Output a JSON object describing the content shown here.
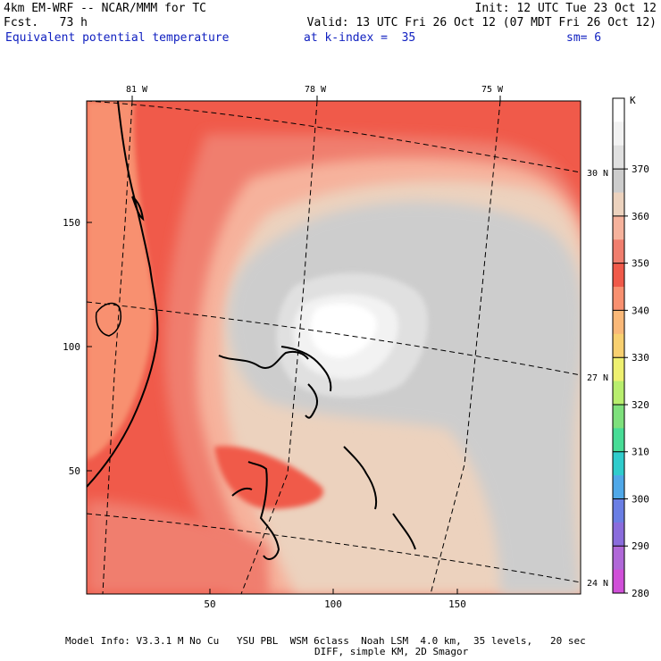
{
  "header": {
    "left_line1": "4km EM-WRF -- NCAR/MMM for TC",
    "left_line2": "Fcst.   73 h",
    "right_line1": "Init: 12 UTC Tue 23 Oct 12",
    "right_line2": "Valid: 13 UTC Fri 26 Oct 12 (07 MDT Fri 26 Oct 12)",
    "field_name": "Equivalent potential temperature",
    "kindex_text": "at k-index =  35",
    "sm_text": "sm= 6"
  },
  "map": {
    "lon_labels": [
      "81 W",
      "78 W",
      "75 W"
    ],
    "lat_labels": [
      "30 N",
      "27 N",
      "24 N"
    ],
    "y_ticks": [
      "150",
      "100",
      "50"
    ],
    "x_ticks": [
      "50",
      "100",
      "150"
    ]
  },
  "colorbar": {
    "unit": "K",
    "labels": [
      "370",
      "360",
      "350",
      "340",
      "330",
      "320",
      "310",
      "300",
      "290",
      "280"
    ],
    "colors": [
      "#ffffff",
      "#f2f2f2",
      "#e0e0e0",
      "#cdcdcd",
      "#ecd2be",
      "#f6b29c",
      "#f07e6e",
      "#f05a4a",
      "#f89070",
      "#fab878",
      "#f8d070",
      "#eef070",
      "#b8ee6e",
      "#7ee07c",
      "#48dc96",
      "#30cccc",
      "#50a8e8",
      "#6a7ee4",
      "#8a6cdc",
      "#b068d8",
      "#d050d8"
    ]
  },
  "footer": {
    "line1": "Model Info: V3.3.1 M No Cu   YSU PBL  WSM 6class  Noah LSM  4.0 km,  35 levels,   20 sec",
    "line2": "DIFF, simple KM, 2D Smagor"
  }
}
